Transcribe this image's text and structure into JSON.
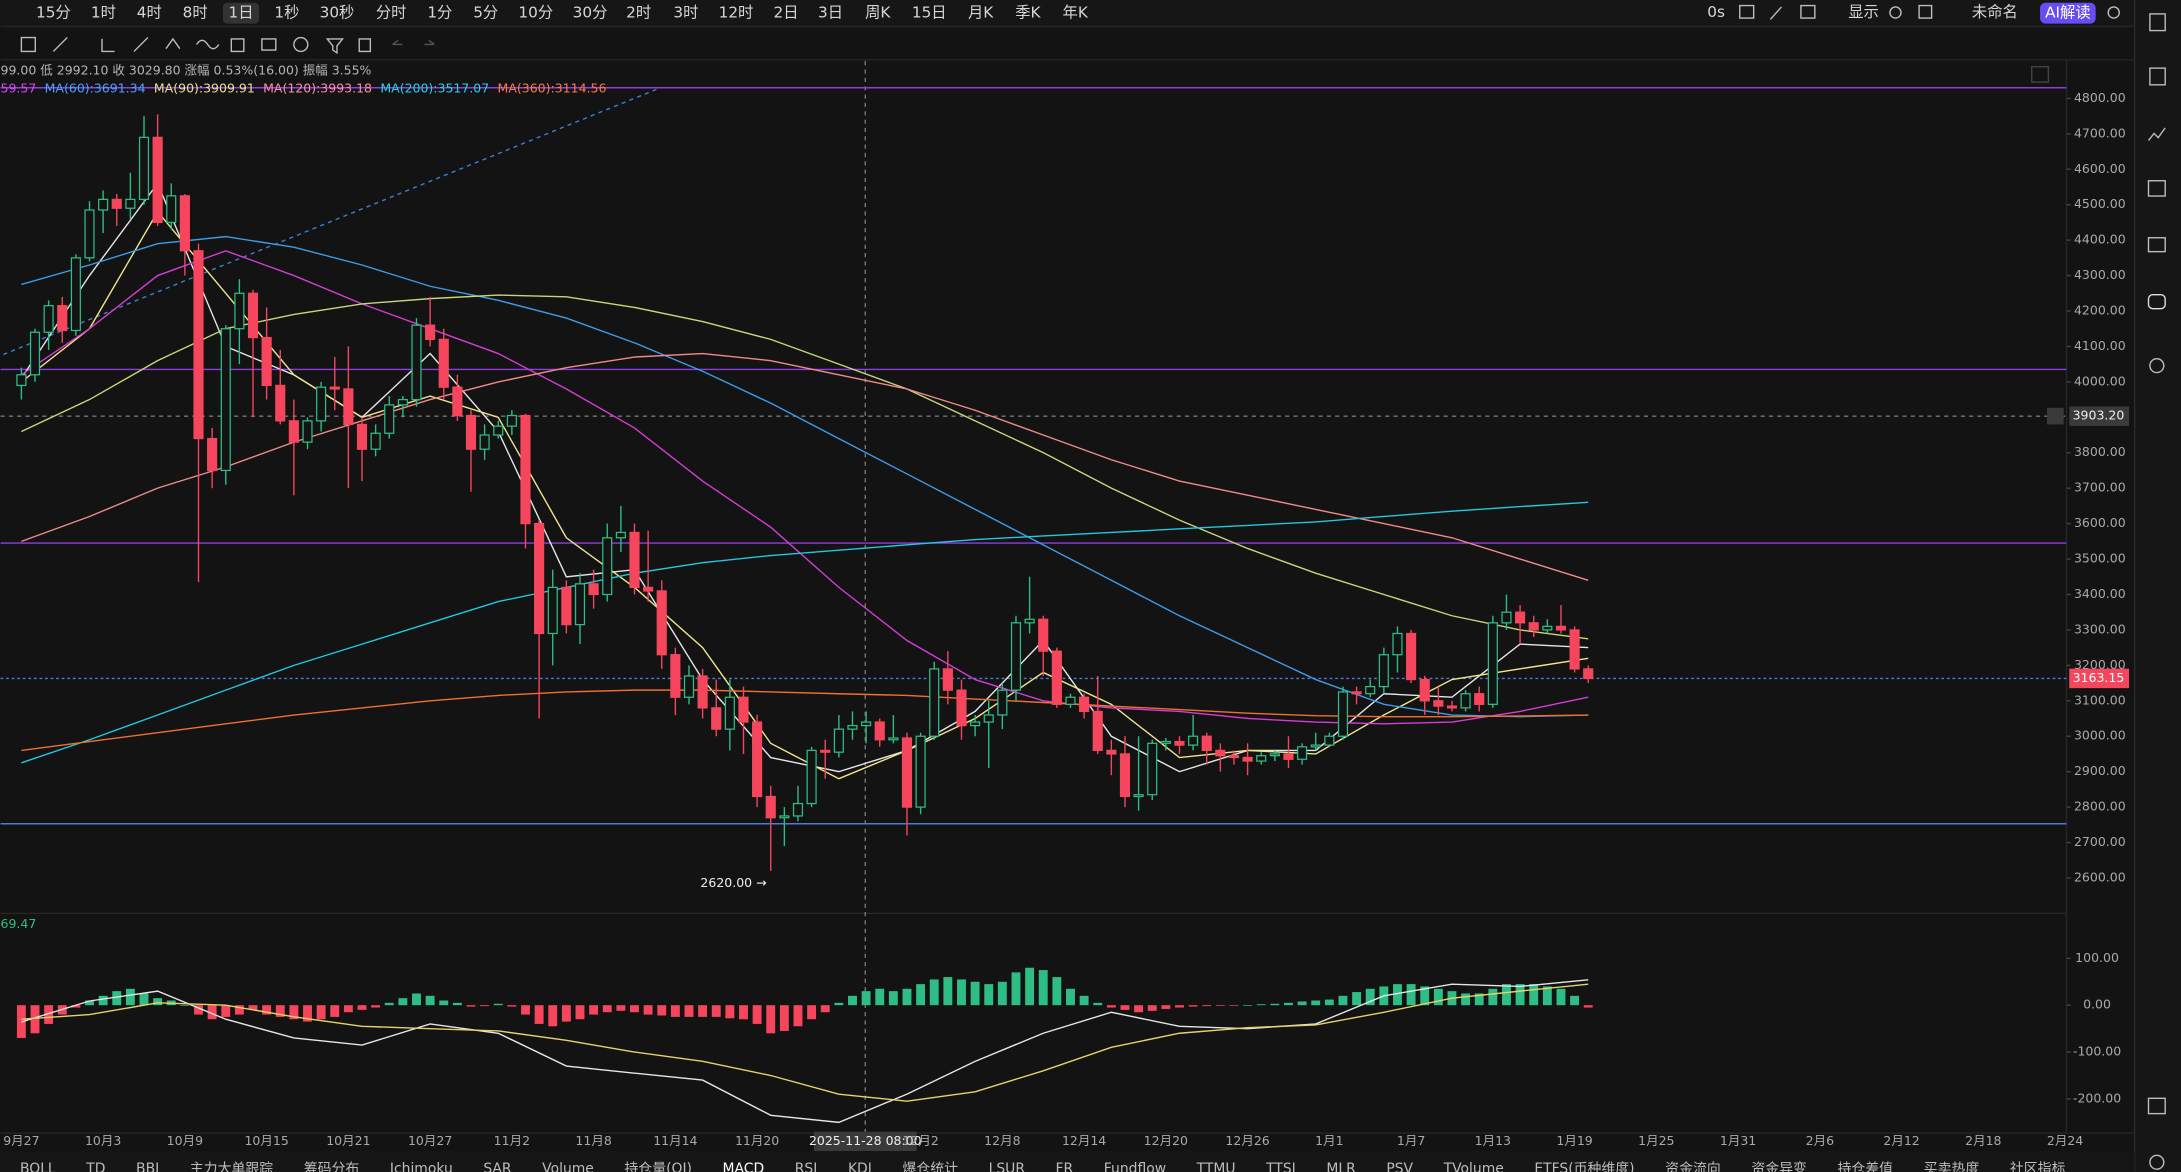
{
  "toolbar": {
    "timeframes": [
      "15分",
      "1时",
      "4时",
      "8时",
      "1日",
      "1秒",
      "30秒",
      "分时",
      "1分",
      "5分",
      "10分",
      "30分",
      "2时",
      "3时",
      "12时",
      "2日",
      "3日",
      "周K",
      "15日",
      "月K",
      "季K",
      "年K"
    ],
    "timer": "0s",
    "display": "显示",
    "layout": "未命名",
    "ai": "AI解读"
  },
  "chart_data": {
    "type": "candlestick",
    "ohlc_legend": "99.00 低 2992.10 收 3029.80 涨幅 0.53%(16.00) 振幅 3.55%",
    "ma_legend": [
      {
        "text": "59.57",
        "color": "#d946ef"
      },
      {
        "text": "MA(60):3691.34",
        "color": "#4aa3ff"
      },
      {
        "text": "MA(90):3909.91",
        "color": "#e5e58a"
      },
      {
        "text": "MA(120):3993.18",
        "color": "#ff8fa3"
      },
      {
        "text": "MA(200):3517.07",
        "color": "#29d3e6"
      },
      {
        "text": "MA(360):3114.56",
        "color": "#ff7a45"
      }
    ],
    "up_color": "#2ebd85",
    "down_color": "#f6465d",
    "candles": [
      [
        3990,
        4040,
        3950,
        4020
      ],
      [
        4020,
        4150,
        4000,
        4140
      ],
      [
        4140,
        4230,
        4090,
        4215
      ],
      [
        4215,
        4240,
        4110,
        4145
      ],
      [
        4145,
        4360,
        4130,
        4350
      ],
      [
        4350,
        4510,
        4340,
        4485
      ],
      [
        4485,
        4540,
        4420,
        4515
      ],
      [
        4515,
        4530,
        4440,
        4490
      ],
      [
        4490,
        4590,
        4460,
        4515
      ],
      [
        4515,
        4750,
        4500,
        4690
      ],
      [
        4690,
        4755,
        4440,
        4450
      ],
      [
        4450,
        4560,
        4430,
        4525
      ],
      [
        4525,
        4530,
        4300,
        4370
      ],
      [
        4370,
        4390,
        3435,
        3840
      ],
      [
        3840,
        3870,
        3700,
        3750
      ],
      [
        3750,
        4160,
        3710,
        4150
      ],
      [
        4150,
        4290,
        4050,
        4250
      ],
      [
        4250,
        4260,
        3900,
        4125
      ],
      [
        4125,
        4210,
        3950,
        3990
      ],
      [
        3990,
        4090,
        3880,
        3890
      ],
      [
        3890,
        3950,
        3680,
        3830
      ],
      [
        3830,
        3900,
        3810,
        3890
      ],
      [
        3890,
        4000,
        3860,
        3985
      ],
      [
        3985,
        4070,
        3920,
        3980
      ],
      [
        3980,
        4100,
        3700,
        3880
      ],
      [
        3880,
        3900,
        3720,
        3810
      ],
      [
        3810,
        3880,
        3790,
        3855
      ],
      [
        3855,
        3960,
        3840,
        3935
      ],
      [
        3935,
        3960,
        3900,
        3950
      ],
      [
        3950,
        4180,
        3930,
        4160
      ],
      [
        4160,
        4240,
        4100,
        4120
      ],
      [
        4120,
        4150,
        3950,
        3985
      ],
      [
        3985,
        4020,
        3890,
        3905
      ],
      [
        3905,
        3920,
        3690,
        3810
      ],
      [
        3810,
        3880,
        3780,
        3850
      ],
      [
        3850,
        3890,
        3840,
        3875
      ],
      [
        3875,
        3920,
        3850,
        3905
      ],
      [
        3905,
        3910,
        3530,
        3600
      ],
      [
        3600,
        3610,
        3050,
        3290
      ],
      [
        3290,
        3470,
        3200,
        3420
      ],
      [
        3420,
        3440,
        3290,
        3315
      ],
      [
        3315,
        3460,
        3260,
        3430
      ],
      [
        3430,
        3470,
        3360,
        3400
      ],
      [
        3400,
        3600,
        3380,
        3560
      ],
      [
        3560,
        3650,
        3520,
        3575
      ],
      [
        3575,
        3600,
        3400,
        3420
      ],
      [
        3420,
        3580,
        3380,
        3410
      ],
      [
        3410,
        3440,
        3190,
        3230
      ],
      [
        3230,
        3250,
        3060,
        3110
      ],
      [
        3110,
        3200,
        3090,
        3170
      ],
      [
        3170,
        3190,
        3050,
        3080
      ],
      [
        3080,
        3160,
        3000,
        3020
      ],
      [
        3020,
        3160,
        2960,
        3110
      ],
      [
        3110,
        3140,
        2950,
        3040
      ],
      [
        3040,
        3060,
        2800,
        2830
      ],
      [
        2830,
        2860,
        2620,
        2770
      ],
      [
        2770,
        2800,
        2690,
        2775
      ],
      [
        2775,
        2860,
        2760,
        2810
      ],
      [
        2810,
        2970,
        2800,
        2960
      ],
      [
        2960,
        2990,
        2880,
        2955
      ],
      [
        2955,
        3060,
        2940,
        3020
      ],
      [
        3020,
        3070,
        2990,
        3030
      ],
      [
        3030,
        3070,
        2980,
        3040
      ],
      [
        3040,
        3050,
        2970,
        2990
      ],
      [
        2990,
        3060,
        2980,
        2995
      ],
      [
        2995,
        3010,
        2720,
        2800
      ],
      [
        2800,
        3010,
        2780,
        3000
      ],
      [
        3000,
        3210,
        2990,
        3190
      ],
      [
        3190,
        3240,
        3090,
        3130
      ],
      [
        3130,
        3160,
        2990,
        3030
      ],
      [
        3030,
        3060,
        3000,
        3040
      ],
      [
        3040,
        3100,
        2910,
        3060
      ],
      [
        3060,
        3150,
        3020,
        3130
      ],
      [
        3130,
        3340,
        3100,
        3320
      ],
      [
        3320,
        3450,
        3290,
        3330
      ],
      [
        3330,
        3340,
        3170,
        3240
      ],
      [
        3240,
        3250,
        3080,
        3090
      ],
      [
        3090,
        3120,
        3080,
        3110
      ],
      [
        3110,
        3120,
        3050,
        3070
      ],
      [
        3070,
        3170,
        2950,
        2960
      ],
      [
        2960,
        2990,
        2890,
        2950
      ],
      [
        2950,
        3000,
        2800,
        2830
      ],
      [
        2830,
        3000,
        2790,
        2835
      ],
      [
        2835,
        2990,
        2820,
        2980
      ],
      [
        2980,
        2995,
        2960,
        2985
      ],
      [
        2985,
        3000,
        2950,
        2975
      ],
      [
        2975,
        3060,
        2960,
        3000
      ],
      [
        3000,
        3010,
        2920,
        2960
      ],
      [
        2960,
        2980,
        2900,
        2945
      ],
      [
        2945,
        2960,
        2920,
        2940
      ],
      [
        2940,
        2980,
        2890,
        2930
      ],
      [
        2930,
        2955,
        2920,
        2945
      ],
      [
        2945,
        2960,
        2930,
        2950
      ],
      [
        2950,
        3000,
        2910,
        2935
      ],
      [
        2935,
        2980,
        2920,
        2970
      ],
      [
        2970,
        3010,
        2960,
        2975
      ],
      [
        2975,
        3010,
        2970,
        3000
      ],
      [
        3000,
        3140,
        2990,
        3125
      ],
      [
        3125,
        3140,
        3090,
        3120
      ],
      [
        3120,
        3160,
        3110,
        3140
      ],
      [
        3140,
        3250,
        3120,
        3230
      ],
      [
        3230,
        3310,
        3180,
        3290
      ],
      [
        3290,
        3300,
        3150,
        3160
      ],
      [
        3160,
        3170,
        3060,
        3100
      ],
      [
        3100,
        3140,
        3060,
        3085
      ],
      [
        3085,
        3100,
        3070,
        3080
      ],
      [
        3080,
        3130,
        3070,
        3120
      ],
      [
        3120,
        3140,
        3070,
        3090
      ],
      [
        3090,
        3340,
        3080,
        3320
      ],
      [
        3320,
        3400,
        3300,
        3350
      ],
      [
        3350,
        3370,
        3260,
        3320
      ],
      [
        3320,
        3340,
        3280,
        3300
      ],
      [
        3300,
        3330,
        3290,
        3310
      ],
      [
        3310,
        3370,
        3290,
        3300
      ],
      [
        3300,
        3310,
        3180,
        3190
      ],
      [
        3190,
        3200,
        3150,
        3163.15
      ]
    ],
    "ma_lines": [
      {
        "color": "#e6e6e6",
        "values": [
          4010,
          4300,
          4560,
          4100,
          4020,
          3900,
          4080,
          3860,
          3450,
          3470,
          3160,
          2940,
          2900,
          2960,
          3070,
          3270,
          3000,
          2900,
          2960,
          2960,
          3120,
          3110,
          3260,
          3250
        ]
      },
      {
        "color": "#f0e68c",
        "values": [
          4000,
          4150,
          4480,
          4250,
          4020,
          3900,
          3960,
          3900,
          3560,
          3420,
          3250,
          2980,
          2880,
          2960,
          3050,
          3180,
          3090,
          2940,
          2960,
          2950,
          3060,
          3160,
          3190,
          3220
        ]
      },
      {
        "color": "#d63cd6",
        "values": [
          4020,
          4150,
          4300,
          4370,
          4300,
          4220,
          4150,
          4080,
          3980,
          3870,
          3720,
          3590,
          3420,
          3270,
          3160,
          3100,
          3080,
          3070,
          3050,
          3040,
          3035,
          3040,
          3070,
          3110
        ]
      },
      {
        "color": "#3d9be9",
        "values": [
          4275,
          4330,
          4390,
          4410,
          4380,
          4330,
          4270,
          4230,
          4180,
          4110,
          4030,
          3940,
          3840,
          3740,
          3640,
          3540,
          3440,
          3340,
          3250,
          3160,
          3090,
          3060,
          3055,
          3060
        ]
      },
      {
        "color": "#c8d67a",
        "values": [
          3860,
          3950,
          4060,
          4150,
          4190,
          4220,
          4235,
          4245,
          4240,
          4210,
          4170,
          4120,
          4050,
          3980,
          3890,
          3800,
          3700,
          3610,
          3530,
          3460,
          3400,
          3340,
          3300,
          3275
        ]
      },
      {
        "color": "#f08a8a",
        "values": [
          3550,
          3620,
          3700,
          3760,
          3830,
          3890,
          3950,
          4000,
          4040,
          4070,
          4080,
          4060,
          4020,
          3980,
          3920,
          3850,
          3780,
          3720,
          3680,
          3640,
          3600,
          3560,
          3500,
          3440
        ]
      },
      {
        "color": "#22c7e0",
        "values": [
          2925,
          2990,
          3060,
          3130,
          3200,
          3260,
          3320,
          3380,
          3420,
          3460,
          3490,
          3510,
          3525,
          3540,
          3555,
          3565,
          3575,
          3585,
          3595,
          3605,
          3620,
          3635,
          3648,
          3660
        ]
      },
      {
        "color": "#f07030",
        "values": [
          2960,
          2985,
          3010,
          3035,
          3060,
          3080,
          3100,
          3115,
          3125,
          3130,
          3130,
          3125,
          3120,
          3115,
          3105,
          3095,
          3085,
          3075,
          3065,
          3058,
          3055,
          3055,
          3057,
          3060
        ]
      }
    ],
    "hlines": [
      {
        "value": 4830,
        "color": "#8e3ee0"
      },
      {
        "value": 4035,
        "color": "#8e3ee0"
      },
      {
        "value": 3545,
        "color": "#8e3ee0"
      },
      {
        "value": 2753,
        "color": "#4a7bd8"
      }
    ],
    "ylim": [
      2500,
      4905
    ],
    "yticks": [
      {
        "value": 2600,
        "label": "2600.00"
      },
      {
        "value": 2700,
        "label": "2700.00"
      },
      {
        "value": 2800,
        "label": "2800.00"
      },
      {
        "value": 2900,
        "label": "2900.00"
      },
      {
        "value": 3000,
        "label": "3000.00"
      },
      {
        "value": 3100,
        "label": "3100.00"
      },
      {
        "value": 3200,
        "label": "3200.00"
      },
      {
        "value": 3300,
        "label": "3300.00"
      },
      {
        "value": 3400,
        "label": "3400.00"
      },
      {
        "value": 3500,
        "label": "3500.00"
      },
      {
        "value": 3600,
        "label": "3600.00"
      },
      {
        "value": 3700,
        "label": "3700.00"
      },
      {
        "value": 3800,
        "label": "3800.00"
      },
      {
        "value": 4000,
        "label": "4000.00"
      },
      {
        "value": 4100,
        "label": "4100.00"
      },
      {
        "value": 4200,
        "label": "4200.00"
      },
      {
        "value": 4300,
        "label": "4300.00"
      },
      {
        "value": 4400,
        "label": "4400.00"
      },
      {
        "value": 4500,
        "label": "4500.00"
      },
      {
        "value": 4600,
        "label": "4600.00"
      },
      {
        "value": 4700,
        "label": "4700.00"
      },
      {
        "value": 4800,
        "label": "4800.00"
      }
    ],
    "x_labels": [
      "9月27",
      "10月3",
      "10月9",
      "10月15",
      "10月21",
      "10月27",
      "11月2",
      "11月8",
      "11月14",
      "11月20",
      null,
      "12月2",
      "12月8",
      "12月14",
      "12月20",
      "12月26",
      "1月1",
      "1月7",
      "1月13",
      "1月19",
      "1月25",
      "1月31",
      "2月6",
      "2月12",
      "2月18",
      "2月24"
    ],
    "crosshair": {
      "time": "2025-11-28 08:00",
      "price": {
        "value": 3903.2,
        "label": "3903.20"
      }
    },
    "last_price": {
      "value": 3163.15,
      "label": "3163.15"
    },
    "low_annotation": "2620.00 →"
  },
  "macd": {
    "type": "bar",
    "label": "69.47",
    "histogram": [
      -70,
      -60,
      -40,
      -20,
      -5,
      10,
      20,
      30,
      35,
      25,
      15,
      10,
      0,
      -20,
      -30,
      -25,
      -20,
      -10,
      -20,
      -25,
      -30,
      -35,
      -30,
      -25,
      -15,
      -10,
      -5,
      5,
      15,
      25,
      20,
      10,
      5,
      -3,
      -2,
      3,
      -3,
      -20,
      -40,
      -45,
      -35,
      -30,
      -20,
      -15,
      -12,
      -15,
      -20,
      -22,
      -25,
      -25,
      -25,
      -25,
      -28,
      -30,
      -40,
      -60,
      -55,
      -45,
      -30,
      -15,
      5,
      20,
      30,
      35,
      30,
      35,
      45,
      55,
      60,
      55,
      50,
      45,
      50,
      70,
      80,
      75,
      60,
      35,
      20,
      5,
      -5,
      -10,
      -15,
      -12,
      -8,
      -5,
      -3,
      -2,
      -1,
      -1,
      0,
      2,
      3,
      5,
      8,
      10,
      12,
      20,
      28,
      35,
      40,
      45,
      45,
      40,
      35,
      30,
      25,
      25,
      35,
      45,
      45,
      45,
      40,
      35,
      20,
      -5
    ],
    "dif": [
      -36,
      9,
      30,
      -30,
      -70,
      -85,
      -40,
      -60,
      -130,
      -145,
      -160,
      -235,
      -250,
      -190,
      -120,
      -60,
      -15,
      -45,
      -50,
      -40,
      20,
      45,
      40,
      54
    ],
    "dea": [
      -30,
      -20,
      5,
      0,
      -25,
      -45,
      -50,
      -55,
      -75,
      -100,
      -120,
      -150,
      -190,
      -205,
      -185,
      -140,
      -90,
      -60,
      -48,
      -42,
      -15,
      15,
      30,
      45
    ],
    "ylim": [
      -273,
      190
    ],
    "yticks": [
      {
        "value": -200,
        "label": "-200.00"
      },
      {
        "value": -100,
        "label": "-100.00"
      },
      {
        "value": 0,
        "label": "0.00"
      },
      {
        "value": 100,
        "label": "100.00"
      }
    ]
  },
  "bottom_tabs": [
    "BOLL",
    "TD",
    "BBI",
    "主力大单跟踪",
    "筹码分布",
    "Ichimoku",
    "SAR",
    "Volume",
    "持仓量(OI)",
    "MACD",
    "RSI",
    "KDJ",
    "爆仓统计",
    "LSUR",
    "FR",
    "Fundflow",
    "TTMU",
    "TTSI",
    "MLR",
    "PSV",
    "TVolume",
    "ETFS(币种维度)",
    "资金流向",
    "资金异变",
    "持仓差值",
    "买卖热度",
    "社区指标"
  ]
}
